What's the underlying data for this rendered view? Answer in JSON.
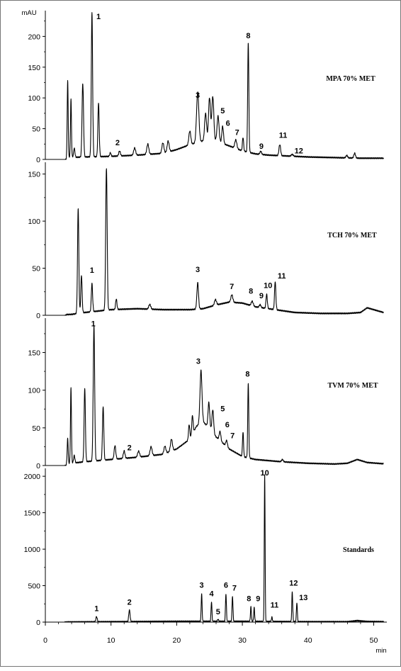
{
  "figure": {
    "y_unit": "mAU",
    "x_unit": "min",
    "x_range": [
      0,
      52
    ],
    "x_ticks": [
      "0",
      "10",
      "20",
      "30",
      "40",
      "50"
    ]
  },
  "chart_data": [
    {
      "type": "line",
      "title": "MPA 70% MET",
      "ylim": [
        0,
        235
      ],
      "y_ticks": [
        "0",
        "50",
        "100",
        "150",
        "200"
      ],
      "y_tick_values": [
        0,
        50,
        100,
        150,
        200
      ],
      "baseline": [
        [
          0,
          2
        ],
        [
          6,
          4
        ],
        [
          10,
          5
        ],
        [
          14,
          7
        ],
        [
          18,
          10
        ],
        [
          20,
          16
        ],
        [
          22,
          24
        ],
        [
          24,
          30
        ],
        [
          26,
          30
        ],
        [
          28,
          22
        ],
        [
          30,
          14
        ],
        [
          32,
          9
        ],
        [
          34,
          7
        ],
        [
          36,
          6
        ],
        [
          38,
          5
        ],
        [
          40,
          4
        ],
        [
          44,
          3
        ],
        [
          48,
          2
        ],
        [
          52,
          2
        ]
      ],
      "peaks": [
        {
          "rt": 3.4,
          "height": 125,
          "width": 0.15
        },
        {
          "rt": 3.9,
          "height": 95,
          "width": 0.15
        },
        {
          "rt": 4.4,
          "height": 15,
          "width": 0.2
        },
        {
          "rt": 5.7,
          "height": 120,
          "width": 0.22
        },
        {
          "rt": 7.1,
          "height": 235,
          "width": 0.2
        },
        {
          "rt": 8.1,
          "height": 88,
          "width": 0.2
        },
        {
          "rt": 9.9,
          "height": 6,
          "width": 0.2
        },
        {
          "rt": 11.3,
          "height": 8,
          "width": 0.25
        },
        {
          "rt": 13.6,
          "height": 12,
          "width": 0.3
        },
        {
          "rt": 15.6,
          "height": 17,
          "width": 0.3
        },
        {
          "rt": 17.9,
          "height": 17,
          "width": 0.3
        },
        {
          "rt": 18.7,
          "height": 18,
          "width": 0.3
        },
        {
          "rt": 22.0,
          "height": 22,
          "width": 0.3
        },
        {
          "rt": 23.2,
          "height": 82,
          "width": 0.35
        },
        {
          "rt": 24.4,
          "height": 45,
          "width": 0.3
        },
        {
          "rt": 25.0,
          "height": 70,
          "width": 0.3
        },
        {
          "rt": 25.5,
          "height": 72,
          "width": 0.3
        },
        {
          "rt": 26.3,
          "height": 42,
          "width": 0.3
        },
        {
          "rt": 27.0,
          "height": 28,
          "width": 0.25
        },
        {
          "rt": 29.0,
          "height": 14,
          "width": 0.3
        },
        {
          "rt": 30.1,
          "height": 22,
          "width": 0.18
        },
        {
          "rt": 30.9,
          "height": 178,
          "width": 0.18
        },
        {
          "rt": 32.8,
          "height": 5,
          "width": 0.25
        },
        {
          "rt": 35.7,
          "height": 18,
          "width": 0.25
        },
        {
          "rt": 37.6,
          "height": 3,
          "width": 0.3
        },
        {
          "rt": 45.9,
          "height": 4,
          "width": 0.25
        },
        {
          "rt": 47.1,
          "height": 8,
          "width": 0.25
        }
      ],
      "labels": [
        {
          "text": "1",
          "x": 8.1,
          "y": 228
        },
        {
          "text": "2",
          "x": 11.0,
          "y": 23
        },
        {
          "text": "3",
          "x": 23.2,
          "y": 100
        },
        {
          "text": "5",
          "x": 27.0,
          "y": 75
        },
        {
          "text": "6",
          "x": 27.8,
          "y": 55
        },
        {
          "text": "7",
          "x": 29.2,
          "y": 40
        },
        {
          "text": "8",
          "x": 30.9,
          "y": 197
        },
        {
          "text": "9",
          "x": 32.9,
          "y": 17
        },
        {
          "text": "11",
          "x": 36.2,
          "y": 35
        },
        {
          "text": "12",
          "x": 38.6,
          "y": 10
        }
      ]
    },
    {
      "type": "line",
      "title": "TCH 70% MET",
      "ylim": [
        0,
        158
      ],
      "y_ticks": [
        "0",
        "50",
        "100",
        "150"
      ],
      "y_tick_values": [
        0,
        50,
        100,
        150
      ],
      "baseline": [
        [
          0,
          0
        ],
        [
          4,
          1
        ],
        [
          6,
          3
        ],
        [
          10,
          6
        ],
        [
          14,
          7
        ],
        [
          18,
          6
        ],
        [
          22,
          6
        ],
        [
          24,
          7
        ],
        [
          26,
          11
        ],
        [
          28,
          14
        ],
        [
          30,
          13
        ],
        [
          32,
          9
        ],
        [
          34,
          7
        ],
        [
          36,
          5
        ],
        [
          38,
          3
        ],
        [
          42,
          2
        ],
        [
          46,
          2
        ],
        [
          48,
          3
        ],
        [
          49,
          8
        ],
        [
          50,
          6
        ],
        [
          51,
          4
        ],
        [
          52,
          2
        ]
      ],
      "peaks": [
        {
          "rt": 5.0,
          "height": 112,
          "width": 0.2
        },
        {
          "rt": 5.5,
          "height": 40,
          "width": 0.2
        },
        {
          "rt": 7.1,
          "height": 30,
          "width": 0.2
        },
        {
          "rt": 9.3,
          "height": 150,
          "width": 0.22
        },
        {
          "rt": 10.8,
          "height": 11,
          "width": 0.2
        },
        {
          "rt": 15.9,
          "height": 5,
          "width": 0.3
        },
        {
          "rt": 23.2,
          "height": 28,
          "width": 0.25
        },
        {
          "rt": 25.9,
          "height": 6,
          "width": 0.3
        },
        {
          "rt": 28.4,
          "height": 8,
          "width": 0.3
        },
        {
          "rt": 31.5,
          "height": 5,
          "width": 0.3
        },
        {
          "rt": 32.7,
          "height": 3,
          "width": 0.25
        },
        {
          "rt": 33.7,
          "height": 15,
          "width": 0.2
        },
        {
          "rt": 35.0,
          "height": 30,
          "width": 0.2
        }
      ],
      "labels": [
        {
          "text": "1",
          "x": 7.1,
          "y": 45
        },
        {
          "text": "3",
          "x": 23.2,
          "y": 46
        },
        {
          "text": "7",
          "x": 28.4,
          "y": 28
        },
        {
          "text": "8",
          "x": 31.3,
          "y": 23
        },
        {
          "text": "9",
          "x": 32.9,
          "y": 18
        },
        {
          "text": "10",
          "x": 33.9,
          "y": 29
        },
        {
          "text": "11",
          "x": 36.0,
          "y": 39
        }
      ]
    },
    {
      "type": "line",
      "title": "TVM 70% MET",
      "ylim": [
        0,
        190
      ],
      "y_ticks": [
        "0",
        "50",
        "100",
        "150"
      ],
      "y_tick_values": [
        0,
        50,
        100,
        150
      ],
      "baseline": [
        [
          0,
          2
        ],
        [
          4,
          3
        ],
        [
          6,
          5
        ],
        [
          10,
          8
        ],
        [
          14,
          11
        ],
        [
          18,
          15
        ],
        [
          20,
          22
        ],
        [
          22,
          35
        ],
        [
          23,
          52
        ],
        [
          24,
          58
        ],
        [
          25,
          50
        ],
        [
          26,
          38
        ],
        [
          28,
          22
        ],
        [
          30,
          12
        ],
        [
          32,
          8
        ],
        [
          36,
          5
        ],
        [
          40,
          3
        ],
        [
          44,
          2
        ],
        [
          46,
          3
        ],
        [
          47.5,
          8
        ],
        [
          49,
          4
        ],
        [
          52,
          2
        ]
      ],
      "peaks": [
        {
          "rt": 3.4,
          "height": 33,
          "width": 0.15
        },
        {
          "rt": 3.9,
          "height": 100,
          "width": 0.15
        },
        {
          "rt": 4.4,
          "height": 10,
          "width": 0.2
        },
        {
          "rt": 6.0,
          "height": 98,
          "width": 0.2
        },
        {
          "rt": 7.4,
          "height": 180,
          "width": 0.22
        },
        {
          "rt": 8.8,
          "height": 70,
          "width": 0.2
        },
        {
          "rt": 10.6,
          "height": 18,
          "width": 0.25
        },
        {
          "rt": 12.0,
          "height": 10,
          "width": 0.25
        },
        {
          "rt": 14.2,
          "height": 8,
          "width": 0.3
        },
        {
          "rt": 16.1,
          "height": 12,
          "width": 0.3
        },
        {
          "rt": 18.2,
          "height": 10,
          "width": 0.3
        },
        {
          "rt": 19.2,
          "height": 16,
          "width": 0.3
        },
        {
          "rt": 21.9,
          "height": 20,
          "width": 0.2
        },
        {
          "rt": 22.4,
          "height": 25,
          "width": 0.2
        },
        {
          "rt": 23.7,
          "height": 70,
          "width": 0.3
        },
        {
          "rt": 24.9,
          "height": 33,
          "width": 0.25
        },
        {
          "rt": 25.5,
          "height": 30,
          "width": 0.25
        },
        {
          "rt": 26.6,
          "height": 12,
          "width": 0.25
        },
        {
          "rt": 27.6,
          "height": 8,
          "width": 0.25
        },
        {
          "rt": 30.1,
          "height": 32,
          "width": 0.16
        },
        {
          "rt": 30.9,
          "height": 100,
          "width": 0.16
        },
        {
          "rt": 36.1,
          "height": 3,
          "width": 0.25
        }
      ],
      "labels": [
        {
          "text": "1",
          "x": 7.3,
          "y": 185
        },
        {
          "text": "2",
          "x": 12.8,
          "y": 20
        },
        {
          "text": "3",
          "x": 23.3,
          "y": 135
        },
        {
          "text": "5",
          "x": 27.0,
          "y": 72
        },
        {
          "text": "6",
          "x": 27.7,
          "y": 51
        },
        {
          "text": "7",
          "x": 28.5,
          "y": 36
        },
        {
          "text": "8",
          "x": 30.8,
          "y": 118
        }
      ]
    },
    {
      "type": "line",
      "title": "Standards",
      "ylim": [
        0,
        2050
      ],
      "y_ticks": [
        "0",
        "500",
        "1000",
        "1500",
        "2000"
      ],
      "y_tick_values": [
        0,
        500,
        1000,
        1500,
        2000
      ],
      "baseline": [
        [
          0,
          0
        ],
        [
          10,
          5
        ],
        [
          20,
          10
        ],
        [
          30,
          10
        ],
        [
          40,
          5
        ],
        [
          46,
          5
        ],
        [
          47.5,
          20
        ],
        [
          49,
          8
        ],
        [
          52,
          5
        ]
      ],
      "peaks": [
        {
          "rt": 7.8,
          "height": 70,
          "width": 0.2
        },
        {
          "rt": 12.8,
          "height": 160,
          "width": 0.2
        },
        {
          "rt": 23.8,
          "height": 380,
          "width": 0.14
        },
        {
          "rt": 25.3,
          "height": 270,
          "width": 0.14
        },
        {
          "rt": 26.3,
          "height": 30,
          "width": 0.15
        },
        {
          "rt": 27.5,
          "height": 380,
          "width": 0.14
        },
        {
          "rt": 28.5,
          "height": 350,
          "width": 0.14
        },
        {
          "rt": 31.3,
          "height": 200,
          "width": 0.14
        },
        {
          "rt": 31.8,
          "height": 190,
          "width": 0.14
        },
        {
          "rt": 33.4,
          "height": 2020,
          "width": 0.13
        },
        {
          "rt": 34.5,
          "height": 60,
          "width": 0.15
        },
        {
          "rt": 37.6,
          "height": 410,
          "width": 0.14
        },
        {
          "rt": 38.3,
          "height": 260,
          "width": 0.14
        }
      ],
      "labels": [
        {
          "text": "1",
          "x": 7.8,
          "y": 150
        },
        {
          "text": "2",
          "x": 12.8,
          "y": 240
        },
        {
          "text": "3",
          "x": 23.8,
          "y": 470
        },
        {
          "text": "4",
          "x": 25.3,
          "y": 355
        },
        {
          "text": "5",
          "x": 26.3,
          "y": 105
        },
        {
          "text": "6",
          "x": 27.5,
          "y": 470
        },
        {
          "text": "7",
          "x": 28.8,
          "y": 430
        },
        {
          "text": "8",
          "x": 31.0,
          "y": 285
        },
        {
          "text": "9",
          "x": 32.4,
          "y": 285
        },
        {
          "text": "10",
          "x": 33.4,
          "y": 2085
        },
        {
          "text": "11",
          "x": 34.9,
          "y": 200
        },
        {
          "text": "12",
          "x": 37.8,
          "y": 500
        },
        {
          "text": "13",
          "x": 39.3,
          "y": 300
        }
      ]
    }
  ]
}
